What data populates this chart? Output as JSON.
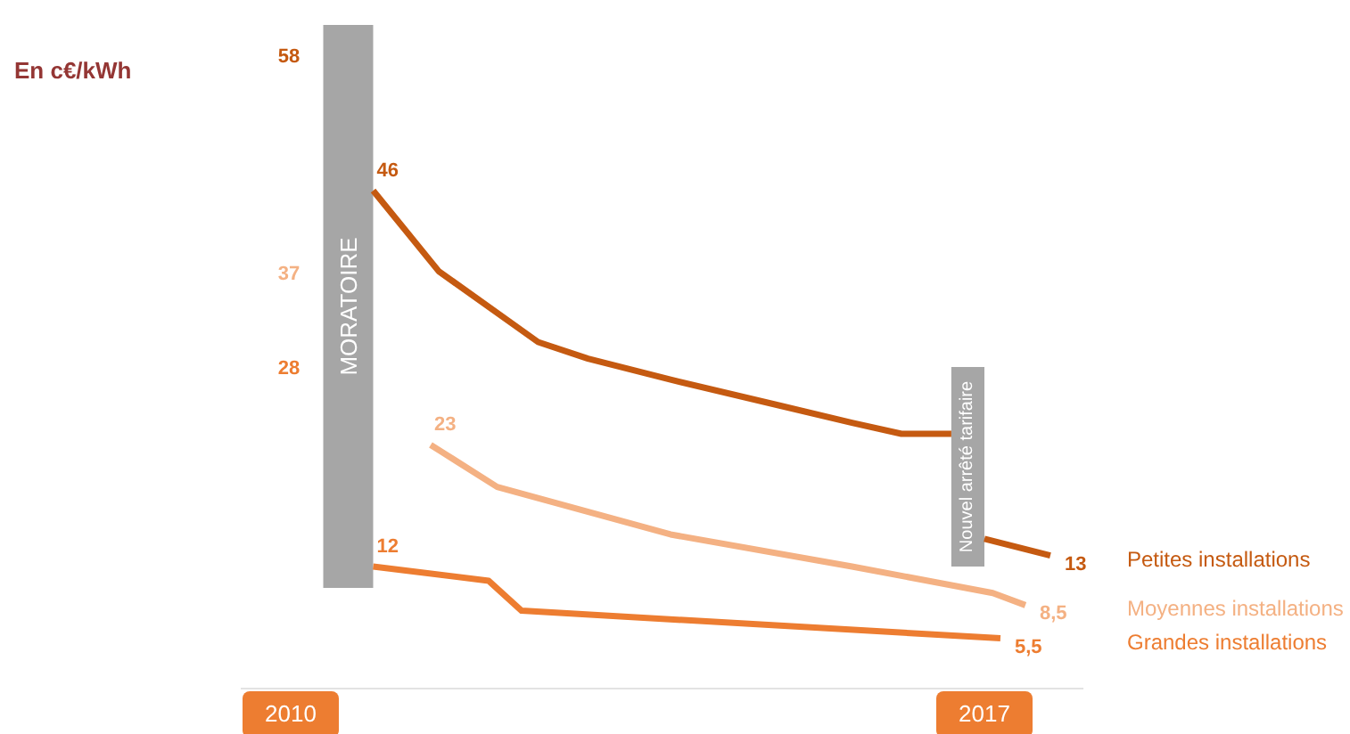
{
  "chart_data": {
    "type": "line",
    "xlim": [
      "2009-07",
      "2018-01"
    ],
    "xticks": [
      "2010",
      "2017"
    ],
    "tick_labels": "x",
    "marker": "none",
    "line_style": "solid",
    "annotations": [
      "En c€/kWh",
      "58",
      "37",
      "28"
    ],
    "bands": [
      {
        "axis": "x",
        "from": "2010-05",
        "to": "2010-11",
        "label": "MORATOIRE",
        "color": "#a6a6a6"
      },
      {
        "axis": "x",
        "from": "2016-09",
        "to": "2017-01",
        "label": "Nouvel arrêté tarifaire",
        "color": "#a6a6a6"
      }
    ],
    "series": [
      {
        "name": "Petites installations",
        "color": "#c55a11",
        "x": [
          "2010-11",
          "2011-07",
          "2012-07",
          "2013",
          "2013-11",
          "2014-12",
          "2015-09",
          "2016-03",
          "2016-09",
          "2016-10",
          "2017-01",
          "2017-09"
        ],
        "values": [
          46,
          38.7,
          32.3,
          30.8,
          28.9,
          26.6,
          25,
          24,
          24,
          null,
          14.5,
          13
        ],
        "value_labels": [
          "46",
          null,
          null,
          null,
          null,
          null,
          null,
          null,
          null,
          null,
          null,
          "13"
        ]
      },
      {
        "name": "Moyennes installations",
        "color": "#f4b183",
        "x": [
          "2011-06",
          "2012-02",
          "2013-11",
          "2015-09",
          "2017-02",
          "2017-06"
        ],
        "values": [
          23,
          19.2,
          14.9,
          12,
          9.6,
          8.5
        ],
        "value_labels": [
          "23",
          null,
          null,
          null,
          null,
          "8,5"
        ]
      },
      {
        "name": "Grandes installations",
        "color": "#ed7d31",
        "x": [
          "2010-11",
          "2012-01",
          "2012-05",
          "2017-03"
        ],
        "values": [
          12,
          10.7,
          8,
          5.5
        ],
        "value_labels": [
          "12",
          null,
          null,
          "5,5"
        ]
      }
    ]
  }
}
